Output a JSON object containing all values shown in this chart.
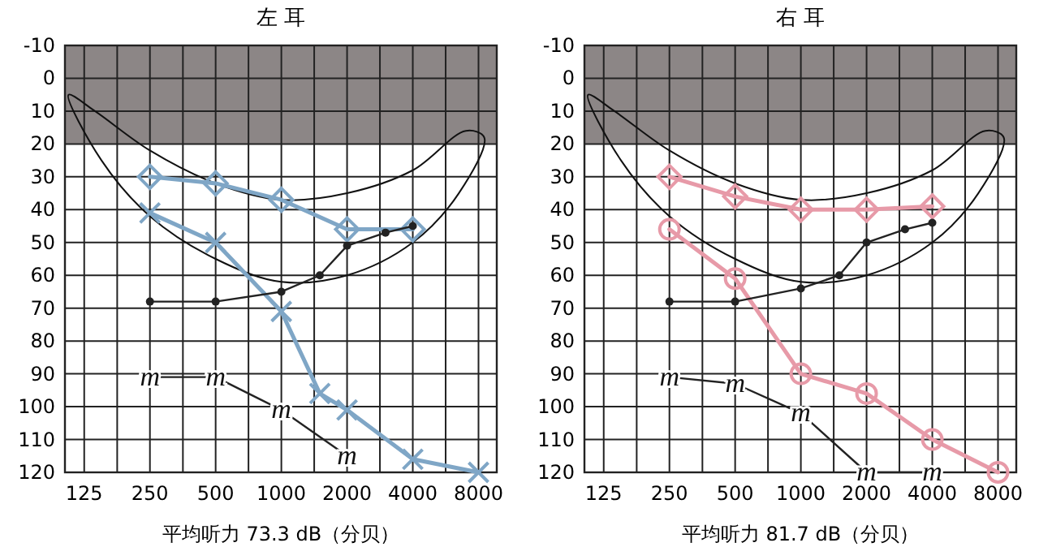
{
  "chart_data": [
    {
      "type": "line",
      "title": "左 耳",
      "log": "x",
      "grid": true,
      "xlim": [
        102,
        9700
      ],
      "ylim": [
        120,
        -10
      ],
      "xticks": [
        125,
        {
          "value": 177,
          "label": null
        },
        250,
        {
          "value": 354,
          "label": null
        },
        500,
        {
          "value": 707,
          "label": null
        },
        1000,
        {
          "value": 1414,
          "label": null
        },
        2000,
        {
          "value": 2828,
          "label": null
        },
        4000,
        {
          "value": 5657,
          "label": null
        },
        8000
      ],
      "yticks": [
        -10,
        0,
        10,
        20,
        30,
        40,
        50,
        60,
        70,
        80,
        90,
        100,
        110,
        120
      ],
      "bands": [
        {
          "axis": "y",
          "from": -10,
          "to": 20,
          "color": "#8c8686"
        }
      ],
      "series": [
        {
          "color": "#7fa6c6",
          "marker": "diamond",
          "x": [
            250,
            500,
            1000,
            2000,
            4000
          ],
          "values": [
            30,
            32,
            37,
            46,
            46
          ]
        },
        {
          "color": "#7fa6c6",
          "marker": "cross",
          "x": [
            250,
            500,
            1000,
            1500,
            2000,
            4000,
            8000
          ],
          "values": [
            41,
            50,
            71,
            96,
            101,
            116,
            120
          ]
        },
        {
          "color": "#222222",
          "marker": "circle",
          "x": [
            250,
            500,
            1000,
            1500,
            2000,
            3000,
            4000
          ],
          "values": [
            68,
            68,
            65,
            60,
            51,
            47,
            45
          ]
        },
        {
          "color": "#222222",
          "marker": "none",
          "x": [
            250,
            500,
            1000,
            2000
          ],
          "values": [
            91,
            91,
            101,
            115
          ]
        }
      ],
      "annotations": [
        {
          "text": "m",
          "x": 250,
          "y": 91
        },
        {
          "text": "m",
          "x": 500,
          "y": 91
        },
        {
          "text": "m",
          "x": 1000,
          "y": 101
        },
        {
          "text": "m",
          "x": 2000,
          "y": 115
        },
        "平均听力 73.3 dB（分贝）"
      ]
    },
    {
      "type": "line",
      "title": "右 耳",
      "log": "x",
      "grid": true,
      "xlim": [
        102,
        9700
      ],
      "ylim": [
        120,
        -10
      ],
      "xticks": [
        125,
        {
          "value": 177,
          "label": null
        },
        250,
        {
          "value": 354,
          "label": null
        },
        500,
        {
          "value": 707,
          "label": null
        },
        1000,
        {
          "value": 1414,
          "label": null
        },
        2000,
        {
          "value": 2828,
          "label": null
        },
        4000,
        {
          "value": 5657,
          "label": null
        },
        8000
      ],
      "yticks": [
        -10,
        0,
        10,
        20,
        30,
        40,
        50,
        60,
        70,
        80,
        90,
        100,
        110,
        120
      ],
      "bands": [
        {
          "axis": "y",
          "from": -10,
          "to": 20,
          "color": "#8c8686"
        }
      ],
      "series": [
        {
          "color": "#e79aa8",
          "marker": "diamond",
          "x": [
            250,
            500,
            1000,
            2000,
            4000
          ],
          "values": [
            30,
            36,
            40,
            40,
            39
          ]
        },
        {
          "color": "#e79aa8",
          "marker": "circle",
          "x": [
            250,
            500,
            1000,
            2000,
            4000,
            8000
          ],
          "values": [
            46,
            61,
            90,
            96,
            110,
            120
          ]
        },
        {
          "color": "#222222",
          "marker": "circle",
          "x": [
            250,
            500,
            1000,
            1500,
            2000,
            3000,
            4000
          ],
          "values": [
            68,
            68,
            64,
            60,
            50,
            46,
            44
          ]
        },
        {
          "color": "#222222",
          "marker": "none",
          "x": [
            250,
            500,
            1000,
            2000,
            4000
          ],
          "values": [
            91,
            93,
            102,
            120,
            120
          ]
        }
      ],
      "annotations": [
        {
          "text": "m",
          "x": 250,
          "y": 91
        },
        {
          "text": "m",
          "x": 500,
          "y": 93
        },
        {
          "text": "m",
          "x": 1000,
          "y": 102
        },
        {
          "text": "m",
          "x": 2000,
          "y": 120
        },
        {
          "text": "m",
          "x": 4000,
          "y": 120
        },
        "平均听力 81.7 dB（分贝）"
      ]
    }
  ]
}
